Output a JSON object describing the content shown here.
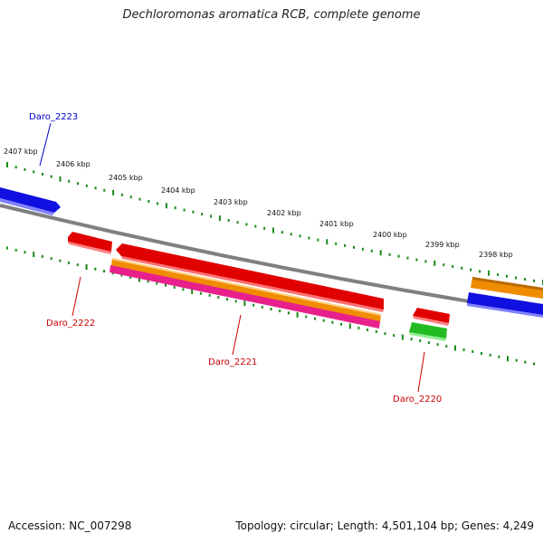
{
  "title": "Dechloromonas aromatica RCB, complete genome",
  "footer": {
    "accession": "Accession: NC_007298",
    "stats": "Topology: circular; Length: 4,501,104 bp; Genes: 4,249"
  },
  "ticks": [
    "2407 kbp",
    "2406 kbp",
    "2405 kbp",
    "2404 kbp",
    "2403 kbp",
    "2402 kbp",
    "2401 kbp",
    "2400 kbp",
    "2399 kbp",
    "2398 kbp"
  ],
  "genes": {
    "daro_2223": "Daro_2223",
    "daro_2222": "Daro_2222",
    "daro_2221": "Daro_2221",
    "daro_2220": "Daro_2220"
  },
  "colors": {
    "backbone": "#808080",
    "tick": "#1a8a1a",
    "blue": "#1010e0",
    "red": "#e00000",
    "orange": "#f08c00",
    "pink": "#e8208c",
    "green": "#22bb22",
    "label_blue": "#0000cc",
    "label_red": "#cc0000"
  }
}
